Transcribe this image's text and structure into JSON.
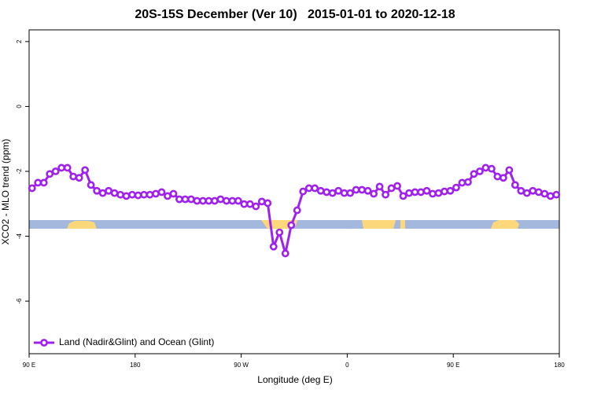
{
  "chart_data": {
    "type": "line",
    "title": "20S-15S December (Ver 10)   2015-01-01 to 2020-12-18",
    "x_label": "Longitude (deg E)",
    "y_label": "XCO2 - MLO trend (ppm)",
    "xlim": [
      90,
      540
    ],
    "ylim": [
      -7.62,
      2.36
    ],
    "xticks": [
      {
        "value": 90,
        "label": "90 E"
      },
      180,
      {
        "value": 270,
        "label": "90 W"
      },
      {
        "value": 360,
        "label": "0"
      },
      {
        "value": 450,
        "label": "90 E"
      },
      {
        "value": 540,
        "label": "180"
      }
    ],
    "yticks": [
      2,
      0,
      -2,
      -4,
      -6
    ],
    "grid": false,
    "legend": "bottom-left",
    "x": [
      92.5,
      97.5,
      102.5,
      107.5,
      112.5,
      117.5,
      122.5,
      127.5,
      132.5,
      137.5,
      142.5,
      147.5,
      152.5,
      157.5,
      162.5,
      167.5,
      172.5,
      177.5,
      182.5,
      187.5,
      192.5,
      197.5,
      202.5,
      207.5,
      212.5,
      217.5,
      222.5,
      227.5,
      232.5,
      237.5,
      242.5,
      247.5,
      252.5,
      257.5,
      262.5,
      267.5,
      272.5,
      277.5,
      282.5,
      287.5,
      292.5,
      297.5,
      302.5,
      307.5,
      312.5,
      317.5,
      322.5,
      327.5,
      332.5,
      337.5,
      342.5,
      347.5,
      352.5,
      357.5,
      362.5,
      367.5,
      372.5,
      377.5,
      382.5,
      387.5,
      392.5,
      397.5,
      402.5,
      407.5,
      412.5,
      417.5,
      422.5,
      427.5,
      432.5,
      437.5,
      442.5,
      447.5,
      452.5,
      457.5,
      462.5,
      467.5,
      472.5,
      477.5,
      482.5,
      487.5,
      492.5,
      497.5,
      502.5,
      507.5,
      512.5,
      517.5,
      522.5,
      527.5,
      532.5,
      537.5
    ],
    "series": [
      {
        "name": "Land (Nadir&Glint) and Ocean (Glint)",
        "color": "#a020f0",
        "values": [
          -2.52,
          -2.35,
          -2.35,
          -2.08,
          -2.0,
          -1.89,
          -1.89,
          -2.16,
          -2.2,
          -1.96,
          -2.42,
          -2.6,
          -2.67,
          -2.6,
          -2.67,
          -2.72,
          -2.76,
          -2.72,
          -2.74,
          -2.72,
          -2.72,
          -2.69,
          -2.64,
          -2.76,
          -2.69,
          -2.86,
          -2.86,
          -2.86,
          -2.91,
          -2.91,
          -2.91,
          -2.91,
          -2.86,
          -2.91,
          -2.91,
          -2.91,
          -3.01,
          -3.01,
          -3.08,
          -2.93,
          -2.98,
          -4.32,
          -3.88,
          -4.53,
          -3.66,
          -3.2,
          -2.62,
          -2.52,
          -2.52,
          -2.6,
          -2.64,
          -2.67,
          -2.6,
          -2.67,
          -2.67,
          -2.57,
          -2.57,
          -2.6,
          -2.69,
          -2.47,
          -2.72,
          -2.52,
          -2.45,
          -2.76,
          -2.67,
          -2.64,
          -2.64,
          -2.6,
          -2.69,
          -2.67,
          -2.62,
          -2.6,
          -2.5,
          -2.35,
          -2.33,
          -2.08,
          -2.0,
          -1.89,
          -1.92,
          -2.16,
          -2.2,
          -1.96,
          -2.42,
          -2.6,
          -2.67,
          -2.6,
          -2.64,
          -2.69,
          -2.76,
          -2.72
        ]
      }
    ]
  }
}
